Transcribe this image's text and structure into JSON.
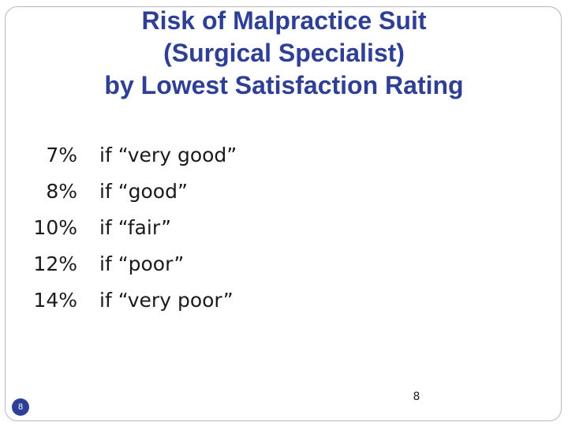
{
  "title": {
    "line1": "Risk of Malpractice Suit",
    "line2": "(Surgical Specialist)",
    "line3": "by Lowest Satisfaction Rating"
  },
  "rows": [
    {
      "percent": "7%",
      "condition": "if “very good”"
    },
    {
      "percent": "8%",
      "condition": "if “good”"
    },
    {
      "percent": "10%",
      "condition": "if “fair”"
    },
    {
      "percent": "12%",
      "condition": "if “poor”"
    },
    {
      "percent": "14%",
      "condition": "if “very poor”"
    }
  ],
  "footer": {
    "badge_number": "8",
    "page_number": "8"
  },
  "colors": {
    "title": "#2f3f95",
    "text": "#1a1a1a",
    "badge": "#2f3f95"
  }
}
